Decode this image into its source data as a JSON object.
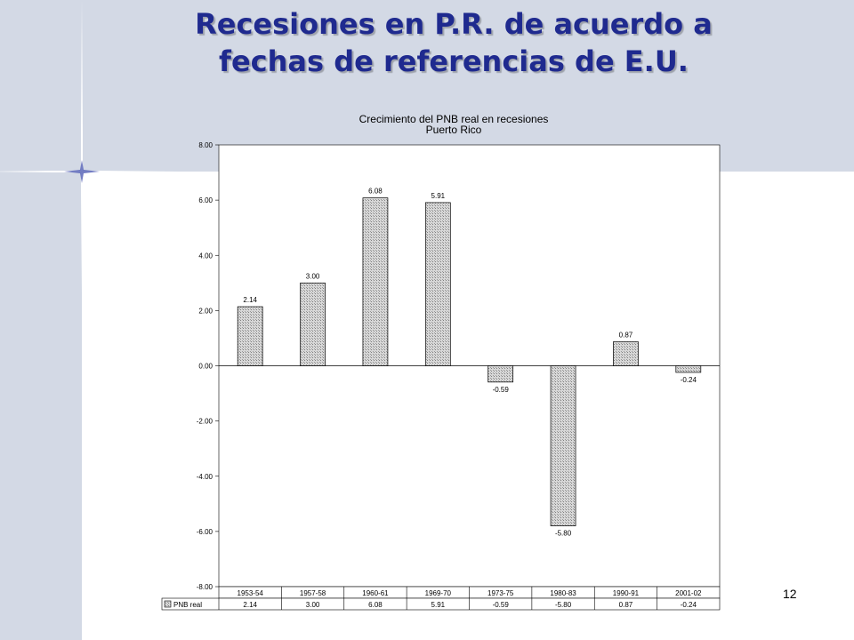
{
  "slide": {
    "title_line1": "Recesiones en P.R. de acuerdo a",
    "title_line2": "fechas de referencias de E.U.",
    "page_number": "12"
  },
  "colors": {
    "background_band": "#d3d9e5",
    "title": "#1f2a8f",
    "bar_fill": "#c4c4c4"
  },
  "chart_data": {
    "type": "bar",
    "title": "Crecimiento del PNB real en recesiones",
    "subtitle": "Puerto Rico",
    "categories": [
      "1953-54",
      "1957-58",
      "1960-61",
      "1969-70",
      "1973-75",
      "1980-83",
      "1990-91",
      "2001-02"
    ],
    "series": [
      {
        "name": "PNB real",
        "values": [
          2.14,
          3.0,
          6.08,
          5.91,
          -0.59,
          -5.8,
          0.87,
          -0.24
        ],
        "labels": [
          "2.14",
          "3.00",
          "6.08",
          "5.91",
          "-0.59",
          "-5.80",
          "0.87",
          "-0.24"
        ]
      }
    ],
    "ylim": [
      -8,
      8
    ],
    "yticks": [
      "-8.00",
      "-6.00",
      "-4.00",
      "-2.00",
      "0.00",
      "2.00",
      "4.00",
      "6.00",
      "8.00"
    ],
    "ytick_values": [
      -8,
      -6,
      -4,
      -2,
      0,
      2,
      4,
      6,
      8
    ],
    "grid": false,
    "legend": "data-table",
    "xlabel": "",
    "ylabel": ""
  }
}
